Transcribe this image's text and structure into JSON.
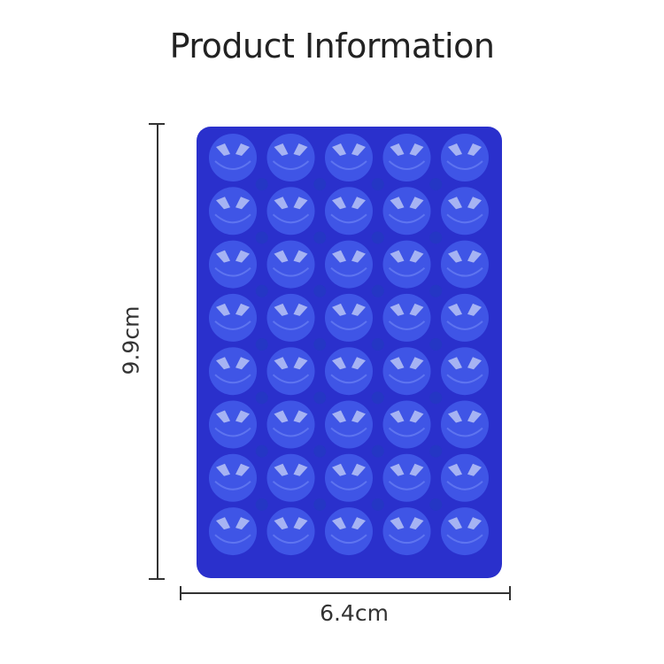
{
  "title": "Product Information",
  "dimensions": {
    "height": "9.9cm",
    "width": "6.4cm"
  },
  "product": {
    "rows": 8,
    "columns": 5,
    "color": "#2a30cc",
    "cup_color": "#3f55e6"
  }
}
